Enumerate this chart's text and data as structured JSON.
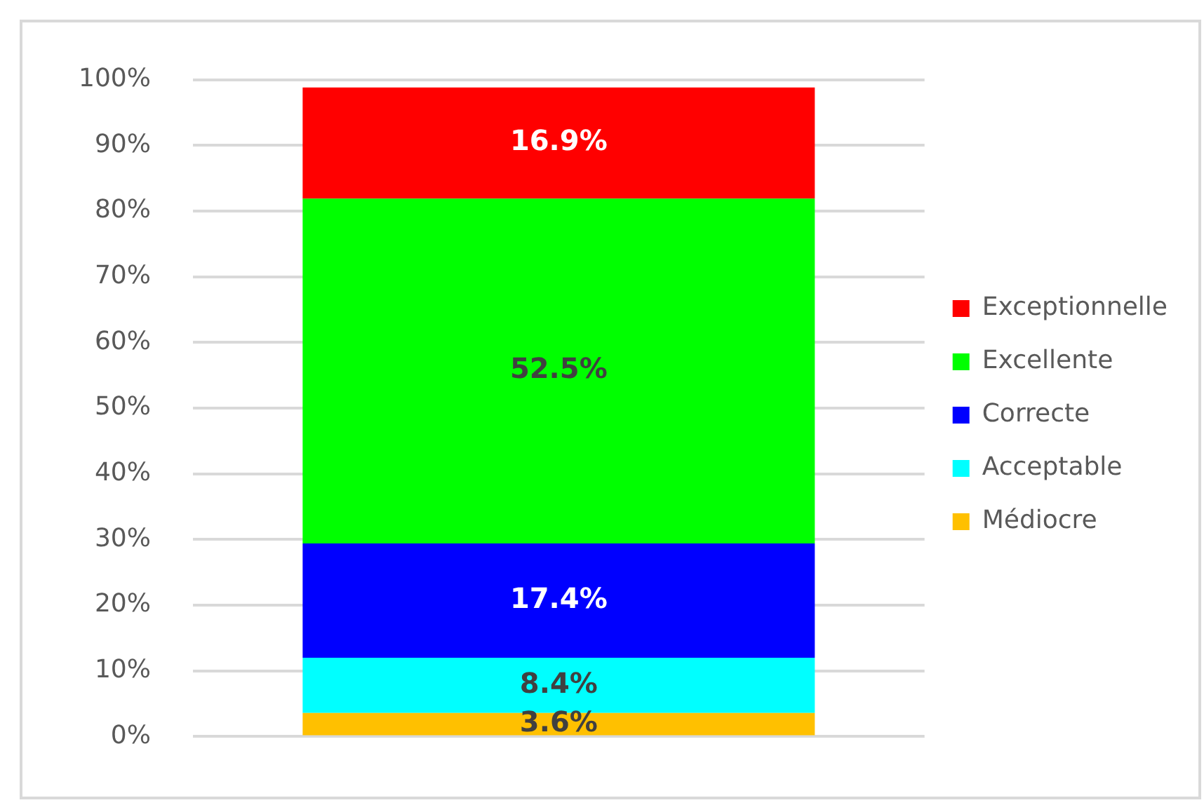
{
  "chart_data": {
    "type": "bar",
    "stacked": true,
    "categories": [
      null
    ],
    "series": [
      {
        "name": "Médiocre",
        "color": "#ffc000",
        "values": [
          3.6
        ],
        "value_labels": [
          "3.6%"
        ]
      },
      {
        "name": "Acceptable",
        "color": "#00ffff",
        "values": [
          8.4
        ],
        "value_labels": [
          "8.4%"
        ]
      },
      {
        "name": "Correcte",
        "color": "#0000ff",
        "values": [
          17.4
        ],
        "value_labels": [
          "17.4%"
        ]
      },
      {
        "name": "Excellente",
        "color": "#00ff00",
        "values": [
          52.5
        ],
        "value_labels": [
          "52.5%"
        ]
      },
      {
        "name": "Exceptionnelle",
        "color": "#ff0000",
        "values": [
          16.9
        ],
        "value_labels": [
          "16.9%"
        ]
      }
    ],
    "ylim": [
      0,
      100
    ],
    "yticks": [
      {
        "value": 0,
        "label": "0%"
      },
      {
        "value": 10,
        "label": "10%"
      },
      {
        "value": 20,
        "label": "20%"
      },
      {
        "value": 30,
        "label": "30%"
      },
      {
        "value": 40,
        "label": "40%"
      },
      {
        "value": 50,
        "label": "50%"
      },
      {
        "value": 60,
        "label": "60%"
      },
      {
        "value": 70,
        "label": "70%"
      },
      {
        "value": 80,
        "label": "80%"
      },
      {
        "value": 90,
        "label": "90%"
      },
      {
        "value": 100,
        "label": "100%"
      }
    ],
    "grid": "y",
    "legend": "right"
  }
}
